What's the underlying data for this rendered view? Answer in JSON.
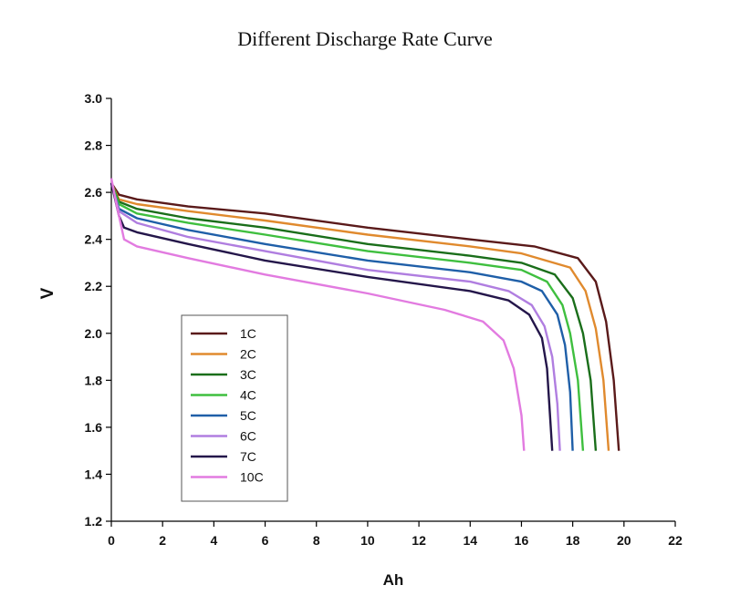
{
  "chart_data": {
    "type": "line",
    "title": "Different Discharge Rate Curve",
    "xlabel": "Ah",
    "ylabel": "V",
    "xlim": [
      0,
      22
    ],
    "ylim": [
      1.2,
      3.0
    ],
    "xticks": [
      "0",
      "2",
      "4",
      "6",
      "8",
      "10",
      "12",
      "14",
      "16",
      "18",
      "20",
      "22"
    ],
    "yticks": [
      "1.2",
      "1.4",
      "1.6",
      "1.8",
      "2.0",
      "2.2",
      "2.4",
      "2.6",
      "2.8",
      "3.0"
    ],
    "grid": false,
    "legend_position": "lower-left",
    "series": [
      {
        "name": "1C",
        "color": "#5a1a1a",
        "points": [
          [
            0,
            2.64
          ],
          [
            0.3,
            2.59
          ],
          [
            1,
            2.57
          ],
          [
            3,
            2.54
          ],
          [
            6,
            2.51
          ],
          [
            10,
            2.45
          ],
          [
            14,
            2.4
          ],
          [
            16.5,
            2.37
          ],
          [
            18.2,
            2.32
          ],
          [
            18.9,
            2.22
          ],
          [
            19.3,
            2.05
          ],
          [
            19.6,
            1.8
          ],
          [
            19.8,
            1.5
          ]
        ]
      },
      {
        "name": "2C",
        "color": "#e08a2e",
        "points": [
          [
            0,
            2.64
          ],
          [
            0.3,
            2.57
          ],
          [
            1,
            2.55
          ],
          [
            3,
            2.52
          ],
          [
            6,
            2.48
          ],
          [
            10,
            2.42
          ],
          [
            14,
            2.37
          ],
          [
            16,
            2.34
          ],
          [
            17.9,
            2.28
          ],
          [
            18.5,
            2.18
          ],
          [
            18.9,
            2.02
          ],
          [
            19.2,
            1.8
          ],
          [
            19.4,
            1.5
          ]
        ]
      },
      {
        "name": "3C",
        "color": "#1a6e1a",
        "points": [
          [
            0,
            2.64
          ],
          [
            0.3,
            2.56
          ],
          [
            1,
            2.53
          ],
          [
            3,
            2.49
          ],
          [
            6,
            2.45
          ],
          [
            10,
            2.38
          ],
          [
            14,
            2.33
          ],
          [
            16,
            2.3
          ],
          [
            17.3,
            2.25
          ],
          [
            18.0,
            2.15
          ],
          [
            18.4,
            2.0
          ],
          [
            18.7,
            1.8
          ],
          [
            18.9,
            1.5
          ]
        ]
      },
      {
        "name": "4C",
        "color": "#3fbf3f",
        "points": [
          [
            0,
            2.64
          ],
          [
            0.3,
            2.55
          ],
          [
            1,
            2.51
          ],
          [
            3,
            2.47
          ],
          [
            6,
            2.42
          ],
          [
            10,
            2.35
          ],
          [
            14,
            2.3
          ],
          [
            16,
            2.27
          ],
          [
            17.0,
            2.22
          ],
          [
            17.6,
            2.12
          ],
          [
            17.9,
            2.0
          ],
          [
            18.2,
            1.8
          ],
          [
            18.4,
            1.5
          ]
        ]
      },
      {
        "name": "5C",
        "color": "#1f5fa8",
        "points": [
          [
            0,
            2.64
          ],
          [
            0.3,
            2.53
          ],
          [
            1,
            2.49
          ],
          [
            3,
            2.44
          ],
          [
            6,
            2.38
          ],
          [
            10,
            2.31
          ],
          [
            14,
            2.26
          ],
          [
            16,
            2.22
          ],
          [
            16.8,
            2.18
          ],
          [
            17.4,
            2.08
          ],
          [
            17.7,
            1.95
          ],
          [
            17.9,
            1.75
          ],
          [
            18.0,
            1.5
          ]
        ]
      },
      {
        "name": "6C",
        "color": "#b07ee0",
        "points": [
          [
            0,
            2.64
          ],
          [
            0.3,
            2.52
          ],
          [
            1,
            2.47
          ],
          [
            3,
            2.41
          ],
          [
            6,
            2.35
          ],
          [
            10,
            2.27
          ],
          [
            14,
            2.22
          ],
          [
            15.5,
            2.18
          ],
          [
            16.4,
            2.12
          ],
          [
            16.9,
            2.03
          ],
          [
            17.2,
            1.9
          ],
          [
            17.4,
            1.7
          ],
          [
            17.5,
            1.5
          ]
        ]
      },
      {
        "name": "7C",
        "color": "#24164a",
        "points": [
          [
            0,
            2.64
          ],
          [
            0.3,
            2.5
          ],
          [
            0.5,
            2.45
          ],
          [
            1,
            2.43
          ],
          [
            3,
            2.38
          ],
          [
            6,
            2.31
          ],
          [
            10,
            2.24
          ],
          [
            14,
            2.18
          ],
          [
            15.5,
            2.14
          ],
          [
            16.3,
            2.08
          ],
          [
            16.8,
            1.98
          ],
          [
            17.0,
            1.85
          ],
          [
            17.2,
            1.5
          ]
        ]
      },
      {
        "name": "10C",
        "color": "#e27be0",
        "points": [
          [
            0,
            2.66
          ],
          [
            0.2,
            2.55
          ],
          [
            0.5,
            2.4
          ],
          [
            1,
            2.37
          ],
          [
            3,
            2.32
          ],
          [
            6,
            2.25
          ],
          [
            10,
            2.17
          ],
          [
            13,
            2.1
          ],
          [
            14.5,
            2.05
          ],
          [
            15.3,
            1.97
          ],
          [
            15.7,
            1.85
          ],
          [
            16.0,
            1.65
          ],
          [
            16.1,
            1.5
          ]
        ]
      }
    ]
  }
}
